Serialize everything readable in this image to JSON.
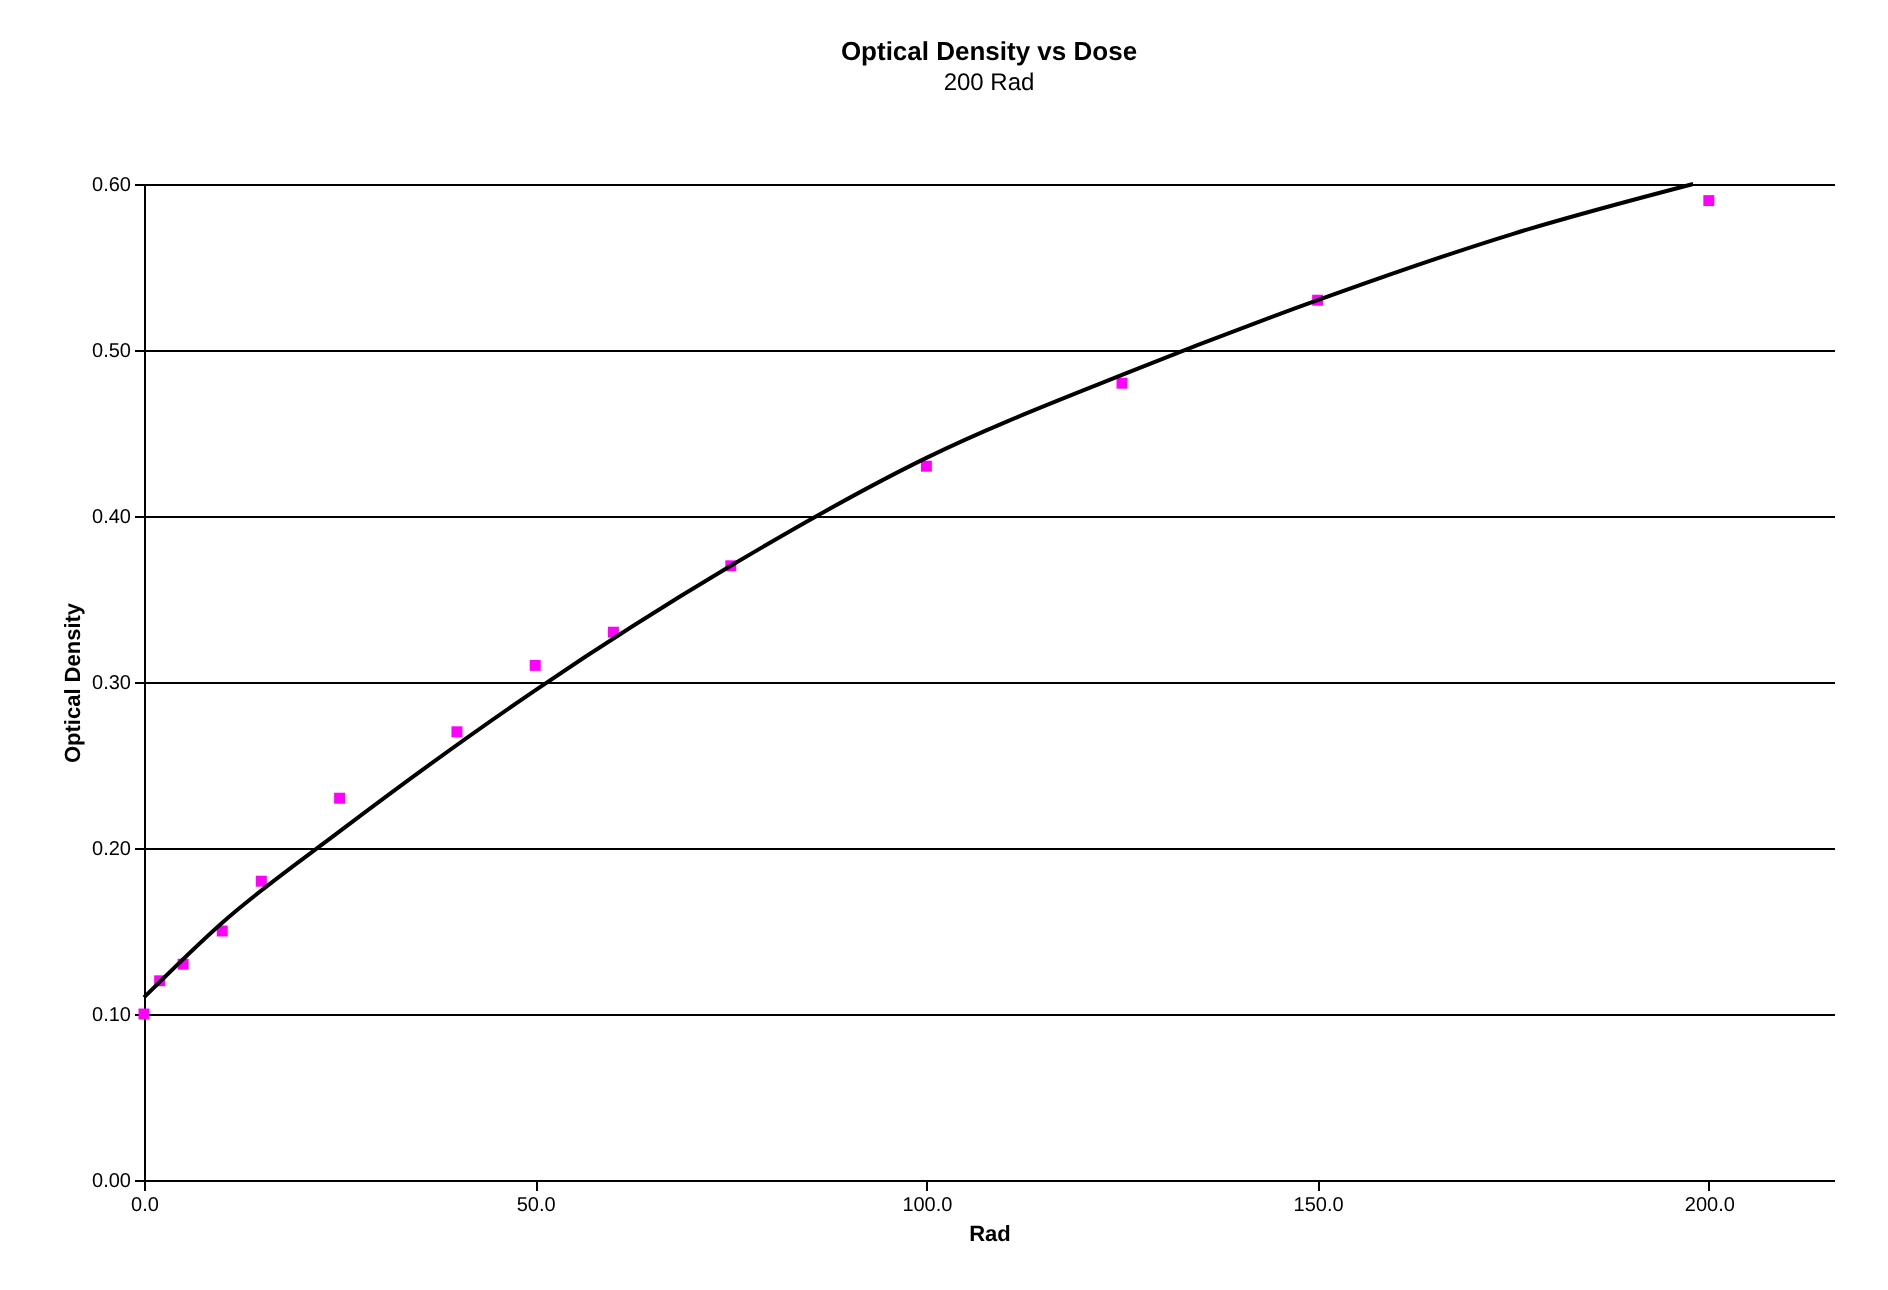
{
  "chart_data": {
    "type": "scatter",
    "title": "Optical Density vs Dose",
    "subtitle": "200 Rad",
    "xlabel": "Rad",
    "ylabel": "Optical Density",
    "xlim": [
      0,
      216
    ],
    "ylim": [
      0,
      0.6
    ],
    "xticks": [
      {
        "value": 0,
        "label": "0.0"
      },
      {
        "value": 50,
        "label": "50.0"
      },
      {
        "value": 100,
        "label": "100.0"
      },
      {
        "value": 150,
        "label": "150.0"
      },
      {
        "value": 200,
        "label": "200.0"
      }
    ],
    "yticks": [
      {
        "value": 0,
        "label": "0.00"
      },
      {
        "value": 0.1,
        "label": "0.10"
      },
      {
        "value": 0.2,
        "label": "0.20"
      },
      {
        "value": 0.3,
        "label": "0.30"
      },
      {
        "value": 0.4,
        "label": "0.40"
      },
      {
        "value": 0.5,
        "label": "0.50"
      },
      {
        "value": 0.6,
        "label": "0.60"
      }
    ],
    "grid": "y",
    "x": [
      0,
      2,
      5,
      10,
      15,
      25,
      40,
      50,
      60,
      75,
      100,
      125,
      150,
      200
    ],
    "series": [
      {
        "marker": "square",
        "color": "#ff00ff",
        "values": [
          0.1,
          0.12,
          0.13,
          0.15,
          0.18,
          0.23,
          0.27,
          0.31,
          0.33,
          0.37,
          0.43,
          0.48,
          0.53,
          0.59
        ]
      },
      {
        "type": "line",
        "color": "#000000",
        "line_style": "solid",
        "x": [
          0,
          10,
          25,
          50,
          75,
          100,
          125,
          150,
          175,
          198
        ],
        "values": [
          0.11,
          0.155,
          0.21,
          0.295,
          0.37,
          0.435,
          0.485,
          0.53,
          0.57,
          0.6
        ]
      }
    ]
  }
}
